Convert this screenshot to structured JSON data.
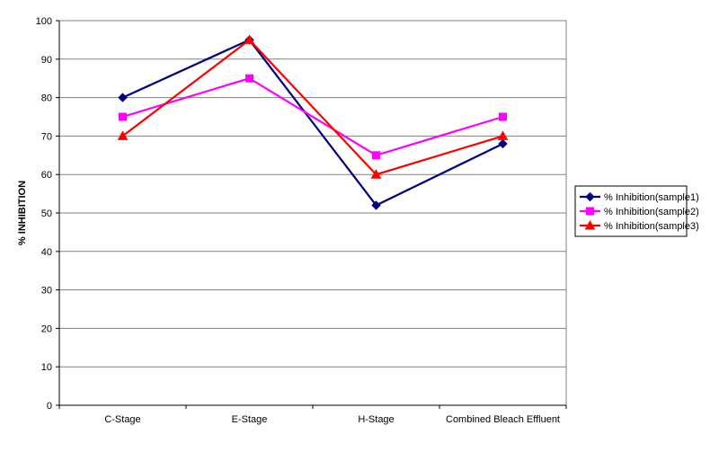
{
  "chart_data": {
    "type": "line",
    "title": "",
    "xlabel": "",
    "ylabel": "% INHIBITION",
    "categories": [
      "C-Stage",
      "E-Stage",
      "H-Stage",
      "Combined Bleach Effluent"
    ],
    "ylim": [
      0,
      100
    ],
    "yticks": [
      0,
      10,
      20,
      30,
      40,
      50,
      60,
      70,
      80,
      90,
      100
    ],
    "grid": true,
    "legend_position": "right",
    "series": [
      {
        "name": "% Inhibition(sample1)",
        "values": [
          80,
          95,
          52,
          68
        ],
        "color": "#00007f",
        "marker": "diamond"
      },
      {
        "name": "% Inhibition(sample2)",
        "values": [
          75,
          85,
          65,
          75
        ],
        "color": "#ff00ff",
        "marker": "square"
      },
      {
        "name": "% Inhibition(sample3)",
        "values": [
          70,
          95,
          60,
          70
        ],
        "color": "#ff0000",
        "marker": "triangle"
      }
    ]
  }
}
